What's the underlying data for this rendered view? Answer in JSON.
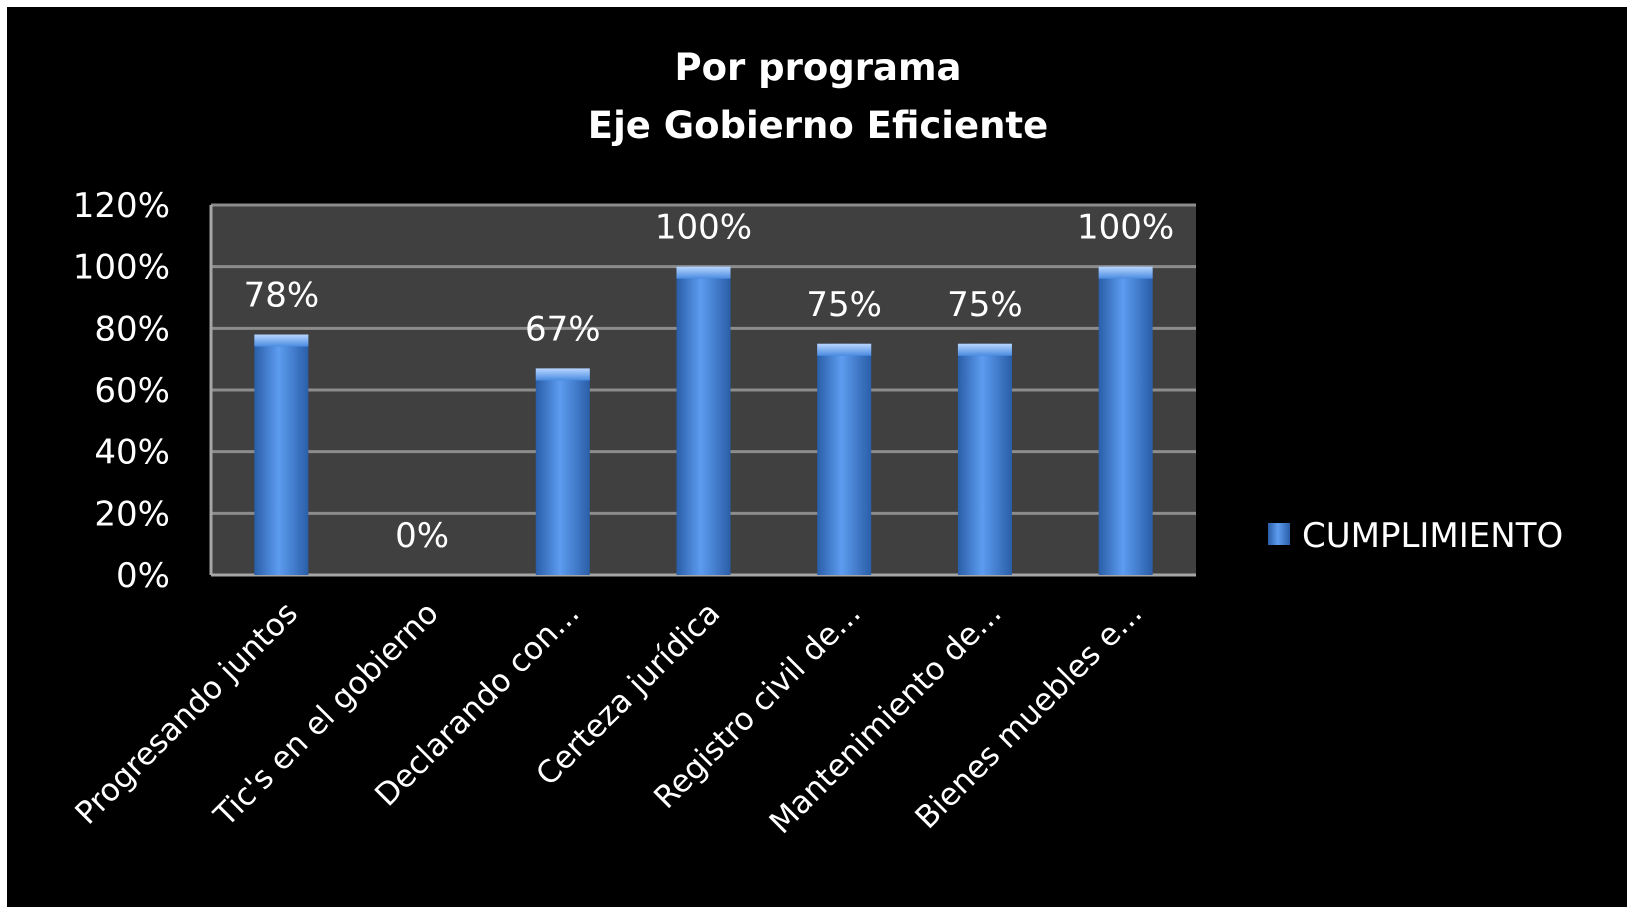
{
  "chart_data": {
    "type": "bar",
    "title_lines": [
      "Por programa",
      "Eje Gobierno Eficiente"
    ],
    "categories": [
      "Progresando juntos",
      "Tic's en el gobierno",
      "Declarando con...",
      "Certeza jurídica",
      "Registro civil de...",
      "Mantenimiento de...",
      "Bienes muebles e..."
    ],
    "series": [
      {
        "name": "CUMPLIMIENTO",
        "values": [
          78,
          0,
          67,
          100,
          75,
          75,
          100
        ]
      }
    ],
    "data_labels": [
      "78%",
      "0%",
      "67%",
      "100%",
      "75%",
      "75%",
      "100%"
    ],
    "yticks": [
      "0%",
      "20%",
      "40%",
      "60%",
      "80%",
      "100%",
      "120%"
    ],
    "ytick_values": [
      0,
      20,
      40,
      60,
      80,
      100,
      120
    ],
    "ylim": [
      0,
      120
    ],
    "xlabel": "",
    "ylabel": "",
    "grid": true,
    "legend_position": "right",
    "colors": {
      "background": "#000000",
      "plot_area": "#404040",
      "bar": "#4a8be0",
      "bar_dark": "#2a5ea8",
      "gridline": "#8c8c8c",
      "text": "#ffffff"
    }
  }
}
